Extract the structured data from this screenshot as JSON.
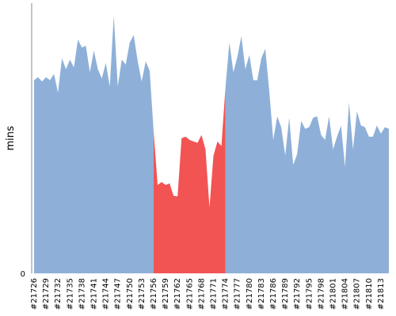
{
  "chart_data": {
    "type": "area",
    "title": "",
    "xlabel": "",
    "ylabel": "mins",
    "y_tick_labels": [
      "0"
    ],
    "ylim": [
      0,
      100
    ],
    "x_tick_labels": [
      "#21726",
      "#21729",
      "#21732",
      "#21735",
      "#21738",
      "#21741",
      "#21744",
      "#21747",
      "#21750",
      "#21753",
      "#21756",
      "#21759",
      "#21762",
      "#21765",
      "#21768",
      "#21771",
      "#21774",
      "#21777",
      "#21780",
      "#21783",
      "#21786",
      "#21789",
      "#21792",
      "#21795",
      "#21798",
      "#21801",
      "#21804",
      "#21807",
      "#21810",
      "#21813"
    ],
    "x_start": 21726,
    "x_end": 21815,
    "grid": false,
    "legend": "none",
    "colors": {
      "normal": "#8eb0d8",
      "highlight": "#f25454",
      "axis": "#888888"
    },
    "series": [
      {
        "values": [
          {
            "x": 21726,
            "y": 71.5
          },
          {
            "x": 21727,
            "y": 72.6
          },
          {
            "x": 21728,
            "y": 71.0
          },
          {
            "x": 21729,
            "y": 72.6
          },
          {
            "x": 21730,
            "y": 71.5
          },
          {
            "x": 21731,
            "y": 73.8
          },
          {
            "x": 21732,
            "y": 66.9
          },
          {
            "x": 21733,
            "y": 79.6
          },
          {
            "x": 21734,
            "y": 75.6
          },
          {
            "x": 21735,
            "y": 79.1
          },
          {
            "x": 21736,
            "y": 76.2
          },
          {
            "x": 21737,
            "y": 86.5
          },
          {
            "x": 21738,
            "y": 83.6
          },
          {
            "x": 21739,
            "y": 84.2
          },
          {
            "x": 21740,
            "y": 74.4
          },
          {
            "x": 21741,
            "y": 82.5
          },
          {
            "x": 21742,
            "y": 75.6
          },
          {
            "x": 21743,
            "y": 72.1
          },
          {
            "x": 21744,
            "y": 77.9
          },
          {
            "x": 21745,
            "y": 69.2
          },
          {
            "x": 21746,
            "y": 95.4
          },
          {
            "x": 21747,
            "y": 69.2
          },
          {
            "x": 21748,
            "y": 79.1
          },
          {
            "x": 21749,
            "y": 77.3
          },
          {
            "x": 21750,
            "y": 85.4
          },
          {
            "x": 21751,
            "y": 88.2
          },
          {
            "x": 21752,
            "y": 78.5
          },
          {
            "x": 21753,
            "y": 71.0
          },
          {
            "x": 21754,
            "y": 78.5
          },
          {
            "x": 21755,
            "y": 75.0
          },
          {
            "x": 21756,
            "y": 52.3
          },
          {
            "x": 21757,
            "y": 32.7
          },
          {
            "x": 21758,
            "y": 33.8
          },
          {
            "x": 21759,
            "y": 32.7
          },
          {
            "x": 21760,
            "y": 33.3
          },
          {
            "x": 21761,
            "y": 28.7
          },
          {
            "x": 21762,
            "y": 28.5
          },
          {
            "x": 21763,
            "y": 50.0
          },
          {
            "x": 21764,
            "y": 50.6
          },
          {
            "x": 21765,
            "y": 49.4
          },
          {
            "x": 21766,
            "y": 48.8
          },
          {
            "x": 21767,
            "y": 48.3
          },
          {
            "x": 21768,
            "y": 51.2
          },
          {
            "x": 21769,
            "y": 45.9
          },
          {
            "x": 21770,
            "y": 24.4
          },
          {
            "x": 21771,
            "y": 43.6
          },
          {
            "x": 21772,
            "y": 48.8
          },
          {
            "x": 21773,
            "y": 47.1
          },
          {
            "x": 21774,
            "y": 68.6
          },
          {
            "x": 21775,
            "y": 85.4
          },
          {
            "x": 21776,
            "y": 74.4
          },
          {
            "x": 21777,
            "y": 80.2
          },
          {
            "x": 21778,
            "y": 87.8
          },
          {
            "x": 21779,
            "y": 75.6
          },
          {
            "x": 21780,
            "y": 80.8
          },
          {
            "x": 21781,
            "y": 71.5
          },
          {
            "x": 21782,
            "y": 71.5
          },
          {
            "x": 21783,
            "y": 79.6
          },
          {
            "x": 21784,
            "y": 83.1
          },
          {
            "x": 21785,
            "y": 67.4
          },
          {
            "x": 21786,
            "y": 49.4
          },
          {
            "x": 21787,
            "y": 58.1
          },
          {
            "x": 21788,
            "y": 54.1
          },
          {
            "x": 21789,
            "y": 43.6
          },
          {
            "x": 21790,
            "y": 57.6
          },
          {
            "x": 21791,
            "y": 40.1
          },
          {
            "x": 21792,
            "y": 44.2
          },
          {
            "x": 21793,
            "y": 56.4
          },
          {
            "x": 21794,
            "y": 53.5
          },
          {
            "x": 21795,
            "y": 54.1
          },
          {
            "x": 21796,
            "y": 57.6
          },
          {
            "x": 21797,
            "y": 58.1
          },
          {
            "x": 21798,
            "y": 51.2
          },
          {
            "x": 21799,
            "y": 49.4
          },
          {
            "x": 21800,
            "y": 58.1
          },
          {
            "x": 21801,
            "y": 45.9
          },
          {
            "x": 21802,
            "y": 50.6
          },
          {
            "x": 21803,
            "y": 54.7
          },
          {
            "x": 21804,
            "y": 39.5
          },
          {
            "x": 21805,
            "y": 63.3
          },
          {
            "x": 21806,
            "y": 45.9
          },
          {
            "x": 21807,
            "y": 59.9
          },
          {
            "x": 21808,
            "y": 54.7
          },
          {
            "x": 21809,
            "y": 54.1
          },
          {
            "x": 21810,
            "y": 50.6
          },
          {
            "x": 21811,
            "y": 50.6
          },
          {
            "x": 21812,
            "y": 54.7
          },
          {
            "x": 21813,
            "y": 51.7
          },
          {
            "x": 21814,
            "y": 54.1
          },
          {
            "x": 21815,
            "y": 53.5
          }
        ]
      }
    ],
    "highlight_ranges": [
      {
        "x_start": 21756,
        "x_end": 21773
      }
    ]
  }
}
